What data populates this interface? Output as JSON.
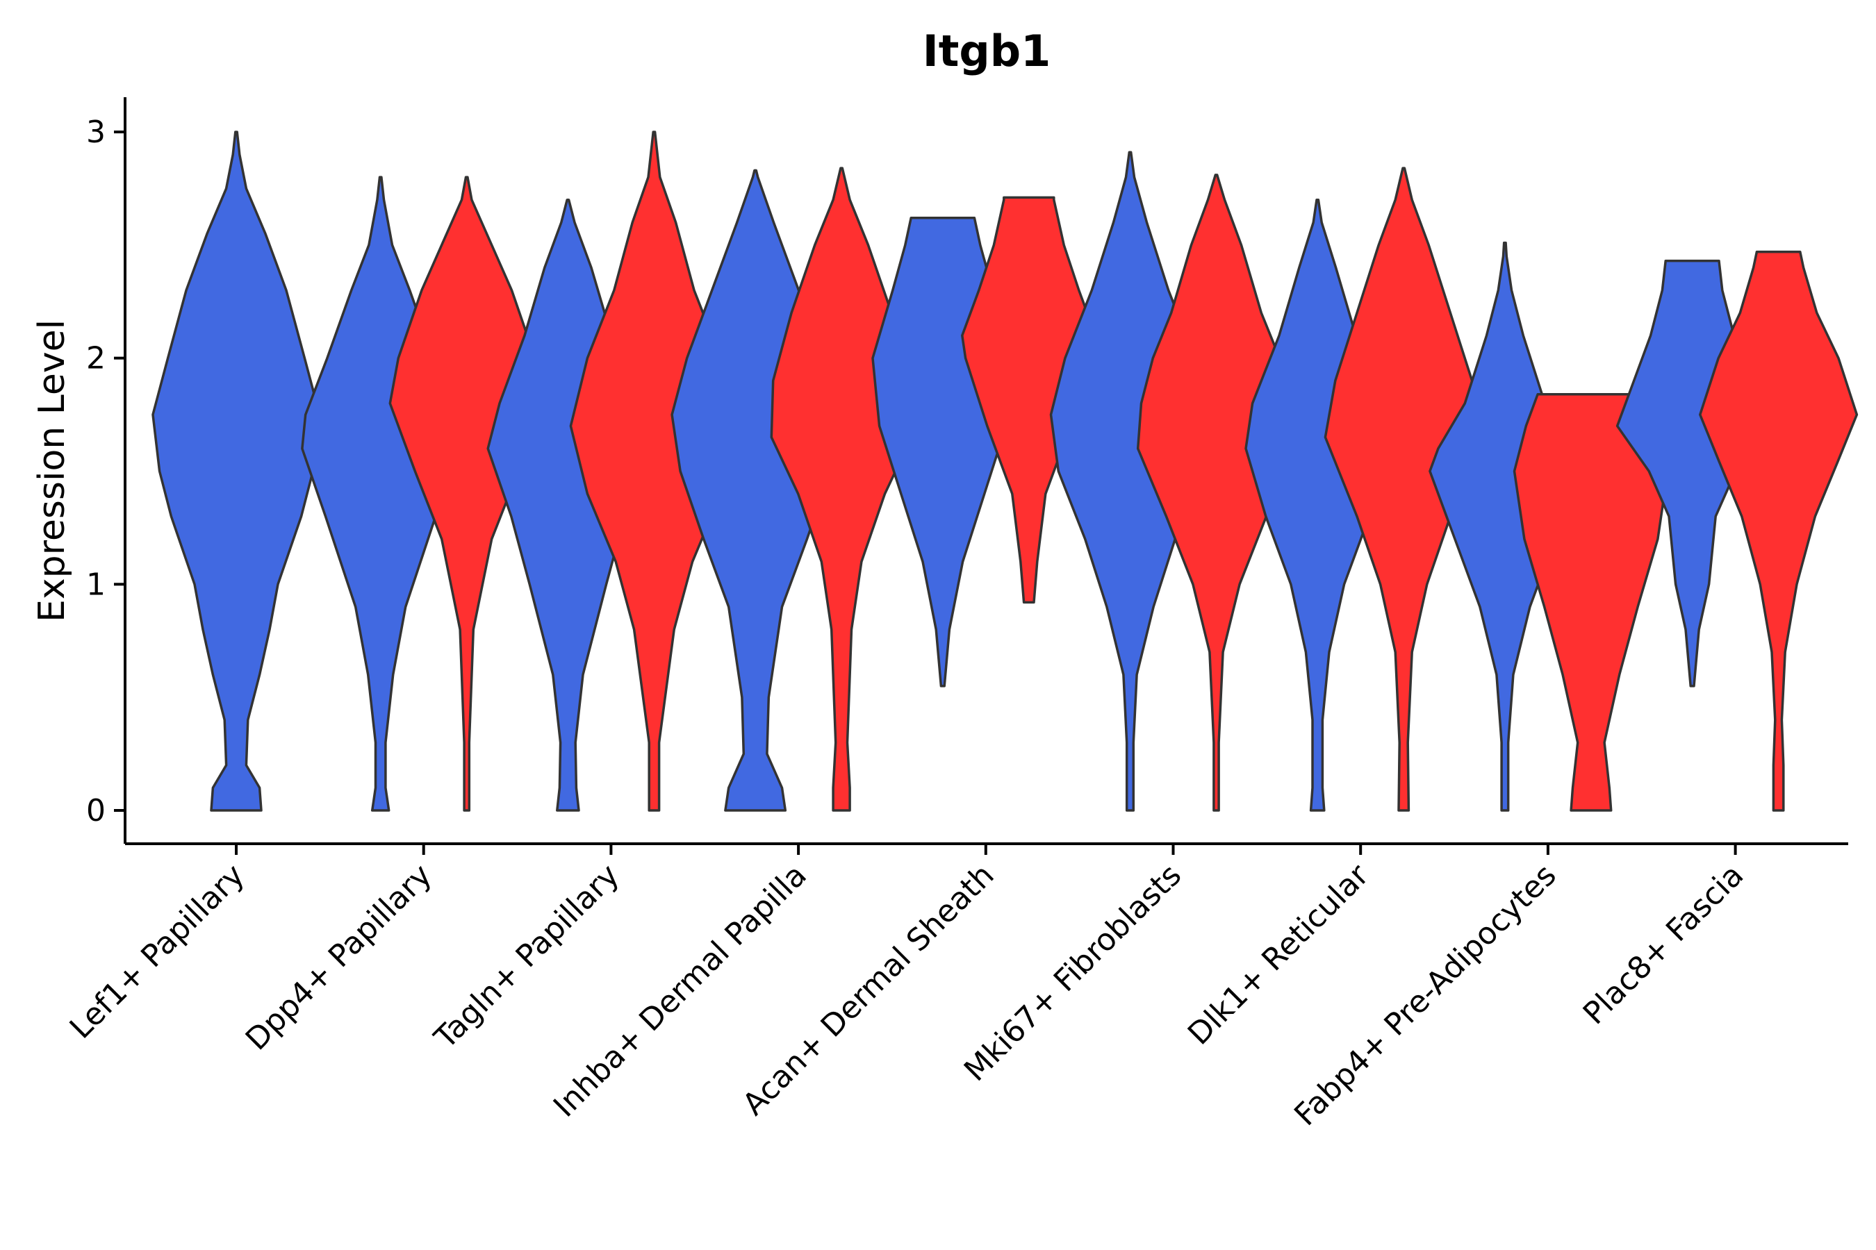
{
  "chart_data": {
    "type": "violin",
    "title": "Itgb1",
    "xlabel": "",
    "ylabel": "Expression Level",
    "ylim": [
      -0.15,
      3.15
    ],
    "yticks": [
      0,
      1,
      2,
      3
    ],
    "grid": false,
    "colors": {
      "group_a": "#4169E1",
      "group_b": "#FF3030",
      "outline": "#333333"
    },
    "categories": [
      "Lef1+ Papillary",
      "Dpp4+ Papillary",
      "Tagln+ Papillary",
      "Inhba+ Dermal Papilla",
      "Acan+ Dermal Sheath",
      "Mki67+ Fibroblasts",
      "Dlk1+ Reticular",
      "Fabp4+ Pre-Adipocytes",
      "Plac8+ Fascia"
    ],
    "violins": [
      {
        "category": 0,
        "offset": 0,
        "group": "a",
        "profile": [
          [
            0,
            0.3
          ],
          [
            0.1,
            0.28
          ],
          [
            0.2,
            0.12
          ],
          [
            0.4,
            0.14
          ],
          [
            0.6,
            0.28
          ],
          [
            0.8,
            0.4
          ],
          [
            1.0,
            0.5
          ],
          [
            1.3,
            0.78
          ],
          [
            1.5,
            0.92
          ],
          [
            1.75,
            1.0
          ],
          [
            2.0,
            0.82
          ],
          [
            2.3,
            0.6
          ],
          [
            2.55,
            0.35
          ],
          [
            2.75,
            0.12
          ],
          [
            2.9,
            0.04
          ],
          [
            3.0,
            0.01
          ]
        ]
      },
      {
        "category": 1,
        "offset": -1,
        "group": "a",
        "profile": [
          [
            0,
            0.1
          ],
          [
            0.1,
            0.06
          ],
          [
            0.3,
            0.06
          ],
          [
            0.6,
            0.15
          ],
          [
            0.9,
            0.3
          ],
          [
            1.3,
            0.66
          ],
          [
            1.6,
            0.94
          ],
          [
            1.75,
            0.9
          ],
          [
            2.0,
            0.64
          ],
          [
            2.3,
            0.35
          ],
          [
            2.5,
            0.14
          ],
          [
            2.7,
            0.04
          ],
          [
            2.8,
            0.01
          ]
        ]
      },
      {
        "category": 1,
        "offset": 1,
        "group": "b",
        "profile": [
          [
            0,
            0.03
          ],
          [
            0.3,
            0.03
          ],
          [
            0.8,
            0.08
          ],
          [
            1.2,
            0.3
          ],
          [
            1.5,
            0.62
          ],
          [
            1.8,
            0.92
          ],
          [
            2.0,
            0.82
          ],
          [
            2.3,
            0.54
          ],
          [
            2.5,
            0.3
          ],
          [
            2.7,
            0.06
          ],
          [
            2.8,
            0.01
          ]
        ]
      },
      {
        "category": 2,
        "offset": -1,
        "group": "a",
        "profile": [
          [
            0,
            0.13
          ],
          [
            0.1,
            0.1
          ],
          [
            0.3,
            0.09
          ],
          [
            0.6,
            0.18
          ],
          [
            1.0,
            0.46
          ],
          [
            1.3,
            0.68
          ],
          [
            1.6,
            0.96
          ],
          [
            1.8,
            0.82
          ],
          [
            2.1,
            0.52
          ],
          [
            2.4,
            0.28
          ],
          [
            2.6,
            0.08
          ],
          [
            2.7,
            0.01
          ]
        ]
      },
      {
        "category": 2,
        "offset": 1,
        "group": "b",
        "profile": [
          [
            0,
            0.06
          ],
          [
            0.3,
            0.06
          ],
          [
            0.8,
            0.24
          ],
          [
            1.1,
            0.46
          ],
          [
            1.4,
            0.8
          ],
          [
            1.7,
            1.0
          ],
          [
            2.0,
            0.8
          ],
          [
            2.3,
            0.48
          ],
          [
            2.6,
            0.26
          ],
          [
            2.8,
            0.07
          ],
          [
            3.0,
            0.01
          ]
        ]
      },
      {
        "category": 3,
        "offset": -1,
        "group": "a",
        "profile": [
          [
            0,
            0.36
          ],
          [
            0.1,
            0.32
          ],
          [
            0.25,
            0.14
          ],
          [
            0.5,
            0.16
          ],
          [
            0.9,
            0.32
          ],
          [
            1.2,
            0.62
          ],
          [
            1.5,
            0.9
          ],
          [
            1.75,
            1.0
          ],
          [
            2.0,
            0.82
          ],
          [
            2.3,
            0.52
          ],
          [
            2.6,
            0.22
          ],
          [
            2.8,
            0.03
          ],
          [
            2.83,
            0.01
          ]
        ]
      },
      {
        "category": 3,
        "offset": 1,
        "group": "b",
        "profile": [
          [
            0,
            0.1
          ],
          [
            0.1,
            0.1
          ],
          [
            0.3,
            0.07
          ],
          [
            0.8,
            0.12
          ],
          [
            1.1,
            0.24
          ],
          [
            1.4,
            0.52
          ],
          [
            1.65,
            0.84
          ],
          [
            1.9,
            0.82
          ],
          [
            2.2,
            0.6
          ],
          [
            2.5,
            0.32
          ],
          [
            2.7,
            0.1
          ],
          [
            2.84,
            0.01
          ]
        ]
      },
      {
        "category": 4,
        "offset": -1,
        "group": "a",
        "profile": [
          [
            0.55,
            0.02
          ],
          [
            0.8,
            0.08
          ],
          [
            1.1,
            0.24
          ],
          [
            1.4,
            0.5
          ],
          [
            1.7,
            0.76
          ],
          [
            2.0,
            0.84
          ],
          [
            2.3,
            0.6
          ],
          [
            2.5,
            0.45
          ],
          [
            2.62,
            0.38
          ]
        ]
      },
      {
        "category": 4,
        "offset": 1,
        "group": "b",
        "profile": [
          [
            0.92,
            0.06
          ],
          [
            1.1,
            0.1
          ],
          [
            1.4,
            0.2
          ],
          [
            1.7,
            0.5
          ],
          [
            2.0,
            0.76
          ],
          [
            2.1,
            0.8
          ],
          [
            2.3,
            0.6
          ],
          [
            2.5,
            0.42
          ],
          [
            2.7,
            0.3
          ],
          [
            2.71,
            0.3
          ]
        ]
      },
      {
        "category": 5,
        "offset": -1,
        "group": "a",
        "profile": [
          [
            0,
            0.04
          ],
          [
            0.3,
            0.04
          ],
          [
            0.6,
            0.08
          ],
          [
            0.9,
            0.28
          ],
          [
            1.2,
            0.54
          ],
          [
            1.5,
            0.86
          ],
          [
            1.75,
            0.95
          ],
          [
            2.0,
            0.78
          ],
          [
            2.3,
            0.46
          ],
          [
            2.6,
            0.2
          ],
          [
            2.8,
            0.05
          ],
          [
            2.91,
            0.01
          ]
        ]
      },
      {
        "category": 5,
        "offset": 1,
        "group": "b",
        "profile": [
          [
            0,
            0.03
          ],
          [
            0.3,
            0.03
          ],
          [
            0.7,
            0.08
          ],
          [
            1.0,
            0.28
          ],
          [
            1.3,
            0.6
          ],
          [
            1.6,
            0.94
          ],
          [
            1.8,
            0.9
          ],
          [
            2.0,
            0.76
          ],
          [
            2.2,
            0.54
          ],
          [
            2.5,
            0.3
          ],
          [
            2.7,
            0.1
          ],
          [
            2.81,
            0.01
          ]
        ]
      },
      {
        "category": 6,
        "offset": -1,
        "group": "a",
        "profile": [
          [
            0,
            0.08
          ],
          [
            0.1,
            0.06
          ],
          [
            0.4,
            0.06
          ],
          [
            0.7,
            0.14
          ],
          [
            1.0,
            0.32
          ],
          [
            1.3,
            0.62
          ],
          [
            1.6,
            0.86
          ],
          [
            1.8,
            0.78
          ],
          [
            2.1,
            0.46
          ],
          [
            2.4,
            0.22
          ],
          [
            2.6,
            0.05
          ],
          [
            2.7,
            0.01
          ]
        ]
      },
      {
        "category": 6,
        "offset": 1,
        "group": "b",
        "profile": [
          [
            0,
            0.06
          ],
          [
            0.3,
            0.05
          ],
          [
            0.7,
            0.1
          ],
          [
            1.0,
            0.28
          ],
          [
            1.3,
            0.56
          ],
          [
            1.65,
            0.94
          ],
          [
            1.9,
            0.82
          ],
          [
            2.2,
            0.56
          ],
          [
            2.5,
            0.3
          ],
          [
            2.7,
            0.1
          ],
          [
            2.84,
            0.01
          ]
        ]
      },
      {
        "category": 7,
        "offset": -1,
        "group": "a",
        "profile": [
          [
            0,
            0.04
          ],
          [
            0.3,
            0.04
          ],
          [
            0.6,
            0.1
          ],
          [
            0.9,
            0.3
          ],
          [
            1.2,
            0.6
          ],
          [
            1.5,
            0.9
          ],
          [
            1.6,
            0.8
          ],
          [
            1.8,
            0.48
          ],
          [
            2.1,
            0.22
          ],
          [
            2.3,
            0.08
          ],
          [
            2.45,
            0.02
          ],
          [
            2.51,
            0.01
          ]
        ]
      },
      {
        "category": 7,
        "offset": 1,
        "group": "b",
        "profile": [
          [
            0,
            0.24
          ],
          [
            0.1,
            0.22
          ],
          [
            0.3,
            0.16
          ],
          [
            0.6,
            0.34
          ],
          [
            0.9,
            0.56
          ],
          [
            1.2,
            0.8
          ],
          [
            1.5,
            0.92
          ],
          [
            1.7,
            0.78
          ],
          [
            1.84,
            0.64
          ]
        ]
      },
      {
        "category": 8,
        "offset": -1,
        "group": "a",
        "profile": [
          [
            0.55,
            0.02
          ],
          [
            0.8,
            0.08
          ],
          [
            1.0,
            0.2
          ],
          [
            1.3,
            0.28
          ],
          [
            1.5,
            0.52
          ],
          [
            1.7,
            0.9
          ],
          [
            1.9,
            0.7
          ],
          [
            2.1,
            0.5
          ],
          [
            2.3,
            0.36
          ],
          [
            2.43,
            0.32
          ]
        ]
      },
      {
        "category": 8,
        "offset": 1,
        "group": "b",
        "profile": [
          [
            0,
            0.06
          ],
          [
            0.2,
            0.06
          ],
          [
            0.4,
            0.04
          ],
          [
            0.7,
            0.08
          ],
          [
            1.0,
            0.22
          ],
          [
            1.3,
            0.44
          ],
          [
            1.55,
            0.72
          ],
          [
            1.75,
            0.94
          ],
          [
            2.0,
            0.72
          ],
          [
            2.2,
            0.46
          ],
          [
            2.4,
            0.3
          ],
          [
            2.47,
            0.26
          ]
        ]
      }
    ]
  }
}
